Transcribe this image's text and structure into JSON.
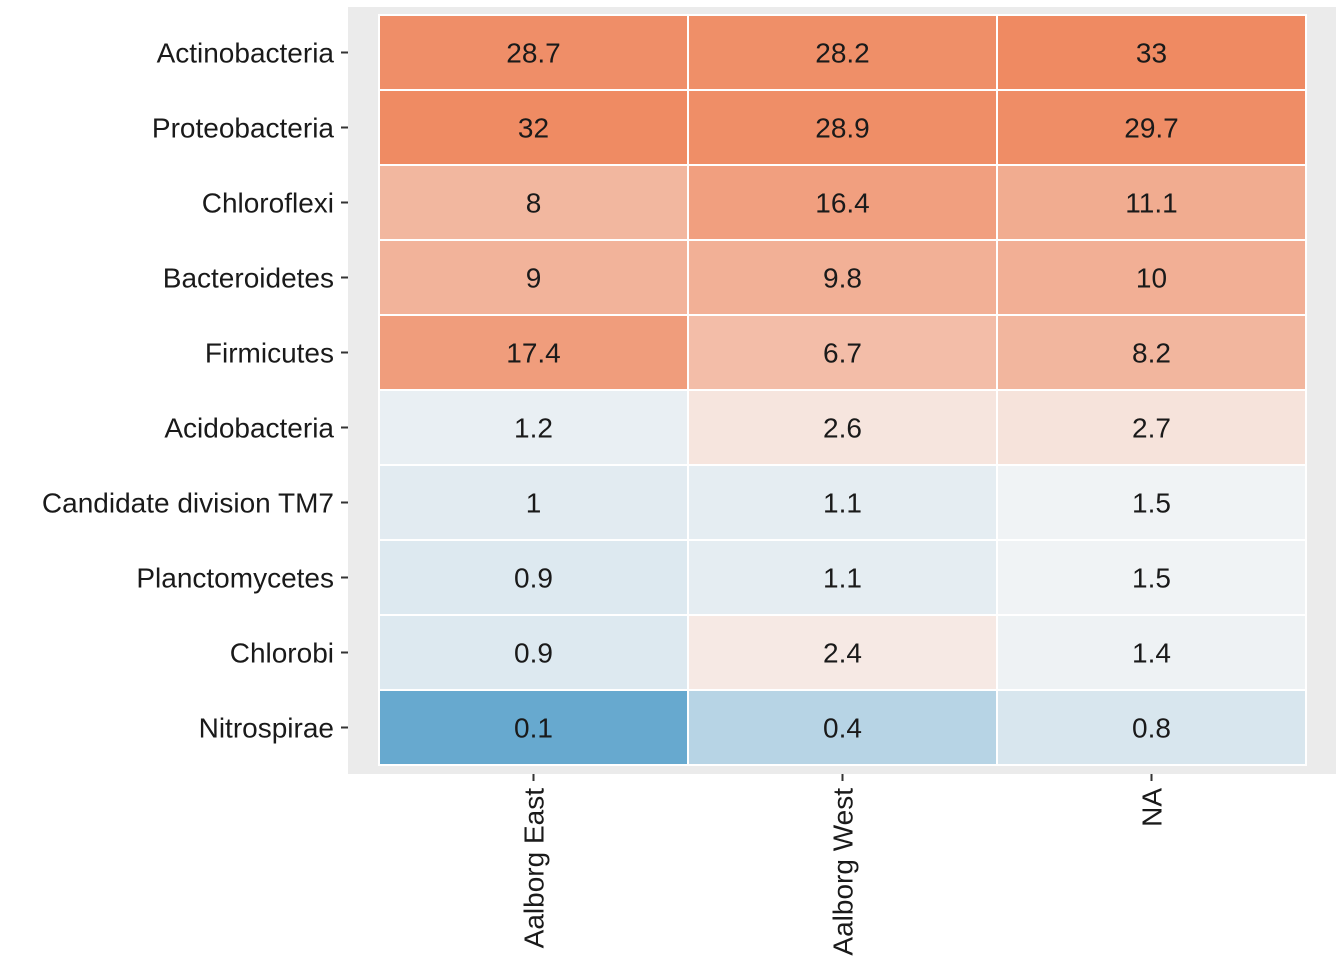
{
  "chart_data": {
    "type": "heatmap",
    "x_categories": [
      "Aalborg East",
      "Aalborg West",
      "NA"
    ],
    "y_categories": [
      "Actinobacteria",
      "Proteobacteria",
      "Chloroflexi",
      "Bacteroidetes",
      "Firmicutes",
      "Acidobacteria",
      "Candidate division TM7",
      "Planctomycetes",
      "Chlorobi",
      "Nitrospirae"
    ],
    "values": [
      [
        28.7,
        28.2,
        33
      ],
      [
        32,
        28.9,
        29.7
      ],
      [
        8,
        16.4,
        11.1
      ],
      [
        9,
        9.8,
        10
      ],
      [
        17.4,
        6.7,
        8.2
      ],
      [
        1.2,
        2.6,
        2.7
      ],
      [
        1,
        1.1,
        1.5
      ],
      [
        0.9,
        1.1,
        1.5
      ],
      [
        0.9,
        2.4,
        1.4
      ],
      [
        0.1,
        0.4,
        0.8
      ]
    ],
    "value_labels": [
      [
        "28.7",
        "28.2",
        "33"
      ],
      [
        "32",
        "28.9",
        "29.7"
      ],
      [
        "8",
        "16.4",
        "11.1"
      ],
      [
        "9",
        "9.8",
        "10"
      ],
      [
        "17.4",
        "6.7",
        "8.2"
      ],
      [
        "1.2",
        "2.6",
        "2.7"
      ],
      [
        "1",
        "1.1",
        "1.5"
      ],
      [
        "0.9",
        "1.1",
        "1.5"
      ],
      [
        "0.9",
        "2.4",
        "1.4"
      ],
      [
        "0.1",
        "0.4",
        "0.8"
      ]
    ],
    "color_scale": "diverging log, midpoint ~2",
    "colors": {
      "low": "#67a9cf",
      "mid": "#f7f7f7",
      "high": "#ef8a62"
    },
    "panel_background": "#ebebeb",
    "grid": false,
    "legend": "none"
  }
}
